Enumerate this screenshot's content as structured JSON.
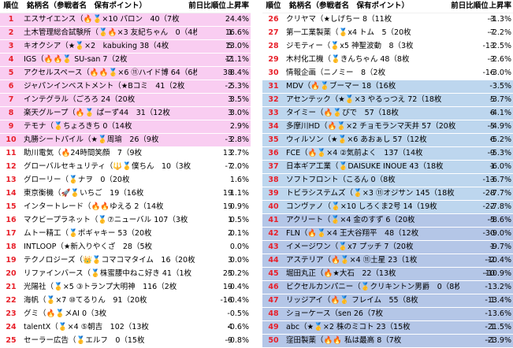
{
  "headers": {
    "rank": "順位",
    "name": "銘柄名（参戦者名　保有ポイント）",
    "prev": "前日比",
    "prev_rank": "順位",
    "rate": "上昇率"
  },
  "colors": {
    "pink": "#f9cdf1",
    "blue1": "#bdd6ee",
    "blue2": "#b4c6e7",
    "rank_text": "#e8202a"
  },
  "left": [
    {
      "rank": "1",
      "name": "エスサイエンス（🔥🥇×10 パロン　40（7枚",
      "prev": "",
      "rate": "24.4%",
      "bg": "pink"
    },
    {
      "rank": "2",
      "name": "土木管理総合試験所（🥇🔥×3 友紀ちゃん　0（4枚",
      "prev": "1",
      "rate": "16.6%",
      "bg": "pink"
    },
    {
      "rank": "3",
      "name": "キオクシア（★🥇×2　kabuking 38（4枚",
      "prev": "5",
      "rate": "13.0%",
      "bg": "pink"
    },
    {
      "rank": "4",
      "name": "IGS（🔥🔥🥇 SU-san 7（2枚",
      "prev": "-2",
      "rate": "11.1%",
      "bg": "pink"
    },
    {
      "rank": "5",
      "name": "アクセルスペース（🔥🔥🥇×6 ⑪ハイド博 64（6枚",
      "prev": "38",
      "rate": "8.4%",
      "bg": "pink"
    },
    {
      "rank": "6",
      "name": "ジャパンインベストメント（★Bコミ　41（2枚",
      "prev": "-2",
      "rate": "5.3%",
      "bg": "pink"
    },
    {
      "rank": "7",
      "name": "インテグラル（ごろろ 24（20枚",
      "prev": "3",
      "rate": "3.5%",
      "bg": "pink"
    },
    {
      "rank": "8",
      "name": "楽天グループ（🔥🥇 ぱーず44　31（12枚",
      "prev": "3",
      "rate": "3.0%",
      "bg": "pink"
    },
    {
      "rank": "9",
      "name": "テモナ（🥇ちょろきち 0（14枚",
      "prev": "",
      "rate": "2.9%",
      "bg": "pink"
    },
    {
      "rank": "10",
      "name": "丸勝シートパイル（★🥇周瑜　26（9枚",
      "prev": "-3",
      "rate": "2.8%",
      "bg": "pink"
    },
    {
      "rank": "11",
      "name": "助川電気（🔥24時間笑顔　7（9枚",
      "prev": "13",
      "rate": "2.7%",
      "bg": ""
    },
    {
      "rank": "12",
      "name": "グローバルセキュリティ（🔱🥇僕ちん　10（3枚",
      "prev": "-7",
      "rate": "2.0%",
      "bg": ""
    },
    {
      "rank": "13",
      "name": "グローリー（🥇ナヲ　0（20枚",
      "prev": "",
      "rate": "1.6%",
      "bg": ""
    },
    {
      "rank": "14",
      "name": "東京衡機（🚀🥇いちご　19（16枚",
      "prev": "19",
      "rate": "1.1%",
      "bg": ""
    },
    {
      "rank": "15",
      "name": "インタートレード（🔥🔥ゆえる 2（14枚",
      "prev": "19",
      "rate": "0.9%",
      "bg": ""
    },
    {
      "rank": "16",
      "name": "マクビープラネット（🥇⑦ニューバル 107（3枚",
      "prev": "1",
      "rate": "0.5%",
      "bg": ""
    },
    {
      "rank": "17",
      "name": "ムトー精工（🥇ポギャキー 53（20枚",
      "prev": "2",
      "rate": "0.1%",
      "bg": ""
    },
    {
      "rank": "18",
      "name": "INTLOOP（★新入りやくざ　28（5枚",
      "prev": "",
      "rate": "0.0%",
      "bg": ""
    },
    {
      "rank": "19",
      "name": "テクノロジーズ（👑🥇コマコマタイム　16（20枚",
      "prev": "3",
      "rate": "0.0%",
      "bg": ""
    },
    {
      "rank": "20",
      "name": "リファインバース（🥇株蜜腰中ねこ好き 41（1枚",
      "prev": "25",
      "rate": "-0.2%",
      "bg": ""
    },
    {
      "rank": "21",
      "name": "光陽社（🥇×5 ③トランプ大明神　116（2枚",
      "prev": "19",
      "rate": "-0.4%",
      "bg": ""
    },
    {
      "rank": "22",
      "name": "海帆（🥇×7 ⑩てるりん　91（20枚",
      "prev": "-16",
      "rate": "-0.4%",
      "bg": ""
    },
    {
      "rank": "23",
      "name": "グミ（🔥🥇メAI 0（3枚",
      "prev": "",
      "rate": "-0.5%",
      "bg": ""
    },
    {
      "rank": "24",
      "name": "talentX（🥇×4 ⑤朝吉　102（13枚",
      "prev": "4",
      "rate": "-0.6%",
      "bg": ""
    },
    {
      "rank": "25",
      "name": "セーラー広告（🥇エルフ　0（15枚",
      "prev": "-9",
      "rate": "-0.8%",
      "bg": ""
    }
  ],
  "right": [
    {
      "rank": "26",
      "name": "クリヤマ（★しげちー 8（11枚",
      "prev": "-3",
      "rate": "-1.3%",
      "bg": ""
    },
    {
      "rank": "27",
      "name": "第一工業製薬（🥇x4 トム　5（20枚",
      "prev": "-7",
      "rate": "-2.2%",
      "bg": ""
    },
    {
      "rank": "28",
      "name": "ジモティー（🥇x5 神聖波動　8（3枚",
      "prev": "-13",
      "rate": "-2.5%",
      "bg": ""
    },
    {
      "rank": "29",
      "name": "木村化工機（🥇きんちゃん 48（8枚",
      "prev": "-3",
      "rate": "-2.6%",
      "bg": ""
    },
    {
      "rank": "30",
      "name": "情報企画（ニノミー　8（2枚",
      "prev": "-16",
      "rate": "-3.0%",
      "bg": ""
    },
    {
      "rank": "31",
      "name": "MDV（🔥🥇ブーマー 18（16枚",
      "prev": "",
      "rate": "-3.5%",
      "bg": "blue1"
    },
    {
      "rank": "32",
      "name": "アセンテック（★🥇×3 やるっつえ 72（18枚",
      "prev": "5",
      "rate": "-3.7%",
      "bg": "blue1"
    },
    {
      "rank": "33",
      "name": "タイミー（🔥🥇ぴで　57（18枚",
      "prev": "6",
      "rate": "-4.1%",
      "bg": "blue1"
    },
    {
      "rank": "34",
      "name": "多摩川HD（🔥🥇×2 チョモランマ天井 57（20枚",
      "prev": "-5",
      "rate": "-4.9%",
      "bg": "blue1"
    },
    {
      "rank": "35",
      "name": "ウィルソン（★🥇×6 あおぁし 57（12枚",
      "prev": "6",
      "rate": "-5.2%",
      "bg": "blue1"
    },
    {
      "rank": "36",
      "name": "FCE（🔥🥇×4 ②気前よく　137（14枚",
      "prev": "-9",
      "rate": "-5.3%",
      "bg": "blue1"
    },
    {
      "rank": "37",
      "name": "日本ギア工業（🥇DAISUKE INOUE 43（18枚",
      "prev": "1",
      "rate": "-6.0%",
      "bg": "blue1"
    },
    {
      "rank": "38",
      "name": "ソフトフロント（こるん 0（8枚",
      "prev": "-13",
      "rate": "-6.7%",
      "bg": "blue1"
    },
    {
      "rank": "39",
      "name": "トビラシステムズ（🥇×3 ⑪オジサン 145（18枚",
      "prev": "-28",
      "rate": "-7.7%",
      "bg": "blue1"
    },
    {
      "rank": "40",
      "name": "コンヴァノ（🥇×10 しろくま2号 14（19枚",
      "prev": "-22",
      "rate": "-7.8%",
      "bg": "blue1"
    },
    {
      "rank": "41",
      "name": "アクリート（🥇×4 金のすず 6（20枚",
      "prev": "-5",
      "rate": "-8.6%",
      "bg": "blue2"
    },
    {
      "rank": "42",
      "name": "FLN（🔥🥇×4 王大谷翔平　48（12枚",
      "prev": "-30",
      "rate": "-9.0%",
      "bg": "blue2"
    },
    {
      "rank": "43",
      "name": "イメージワン（🥇x7 プッチ 7（20枚",
      "prev": "1",
      "rate": "-9.7%",
      "bg": "blue2"
    },
    {
      "rank": "44",
      "name": "アステリア（🔥🥇×4 ⑪土星 23（1枚",
      "prev": "-2",
      "rate": "-10.4%",
      "bg": "blue2"
    },
    {
      "rank": "45",
      "name": "堀田丸正（🔥★大石　22（13枚",
      "prev": "-10",
      "rate": "-10.9%",
      "bg": "blue2"
    },
    {
      "rank": "46",
      "name": "ビクセルカンパニー（🥇クリキントン男爵　0（8枚",
      "prev": "",
      "rate": "-13.2%",
      "bg": "blue2"
    },
    {
      "rank": "47",
      "name": "リッジアイ（🔥🥇 フレイム　55（8枚",
      "prev": "1",
      "rate": "-13.4%",
      "bg": "blue2"
    },
    {
      "rank": "48",
      "name": "ショーケース（sen 26（7枚",
      "prev": "",
      "rate": "-13.6%",
      "bg": "blue2"
    },
    {
      "rank": "49",
      "name": "abc（★🥇×2 株のミコト 23（15枚",
      "prev": "1",
      "rate": "-21.5%",
      "bg": "blue2"
    },
    {
      "rank": "50",
      "name": "窪田製薬（🔥🔥 私は最高 8（7枚",
      "prev": "-1",
      "rate": "-23.9%",
      "bg": "blue2"
    }
  ]
}
